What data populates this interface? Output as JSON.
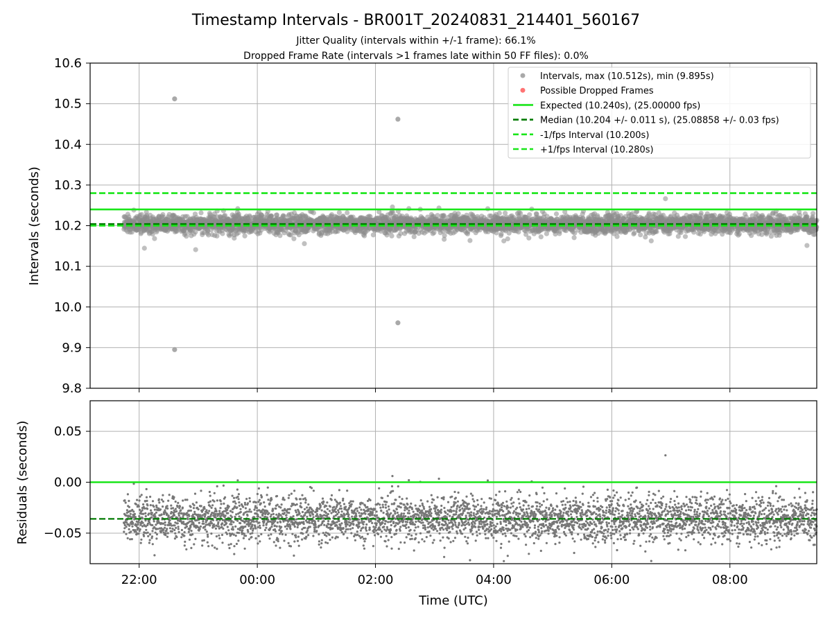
{
  "chart_data": {
    "type": "scatter",
    "title": "Timestamp Intervals - BR001T_20240831_214401_560167",
    "subtitle_1": "Jitter Quality (intervals within +/-1 frame): 66.1%",
    "subtitle_2": "Dropped Frame Rate (intervals >1 frames late within 50 FF files): 0.0%",
    "xlabel": "Time (UTC)",
    "x_ticks": [
      "22:00",
      "00:00",
      "02:00",
      "04:00",
      "06:00",
      "08:00"
    ],
    "x_range_hours": [
      21.17,
      33.47
    ],
    "data_start_hours": 21.74,
    "data_end_hours": 33.47,
    "grid": true,
    "legend_position": "upper right",
    "top_panel": {
      "ylabel": "Intervals (seconds)",
      "ylim": [
        9.8,
        10.6
      ],
      "y_ticks": [
        "10.6",
        "10.5",
        "10.4",
        "10.3",
        "10.2",
        "10.1",
        "10.0",
        "9.9",
        "9.8"
      ],
      "y_tick_values": [
        10.6,
        10.5,
        10.4,
        10.3,
        10.2,
        10.1,
        10.0,
        9.9,
        9.8
      ],
      "series": [
        {
          "name": "Intervals, max (10.512s), min (9.895s)",
          "kind": "scatter",
          "color": "#8c8c8c",
          "center": 10.204,
          "spread": 0.011,
          "approx_count": 4100
        },
        {
          "name": "Possible Dropped Frames",
          "kind": "scatter",
          "color": "#ff5a5a",
          "values": []
        },
        {
          "name": "Expected (10.240s), (25.00000 fps)",
          "kind": "hline",
          "value": 10.24,
          "color": "#19e619",
          "style": "solid"
        },
        {
          "name": "Median (10.204 +/- 0.011 s), (25.08858 +/- 0.03 fps)",
          "kind": "hline",
          "value": 10.204,
          "color": "#007a00",
          "style": "dashed"
        },
        {
          "name": "-1/fps Interval (10.200s)",
          "kind": "hline",
          "value": 10.2,
          "color": "#19e619",
          "style": "dashed"
        },
        {
          "name": "+1/fps Interval (10.280s)",
          "kind": "hline",
          "value": 10.28,
          "color": "#19e619",
          "style": "dashed"
        }
      ],
      "outliers": [
        {
          "x": 22.6,
          "y": 10.512
        },
        {
          "x": 22.6,
          "y": 9.895
        },
        {
          "x": 26.38,
          "y": 10.462
        },
        {
          "x": 26.38,
          "y": 9.961
        }
      ]
    },
    "bottom_panel": {
      "ylabel": "Residuals (seconds)",
      "ylim": [
        -0.08,
        0.08
      ],
      "y_ticks": [
        "0.05",
        "0.00",
        "−0.05"
      ],
      "y_tick_values": [
        0.05,
        0.0,
        -0.05
      ],
      "expected_line": 0.0,
      "median_line": -0.036,
      "residual_center": -0.036,
      "residual_spread": 0.011
    }
  }
}
